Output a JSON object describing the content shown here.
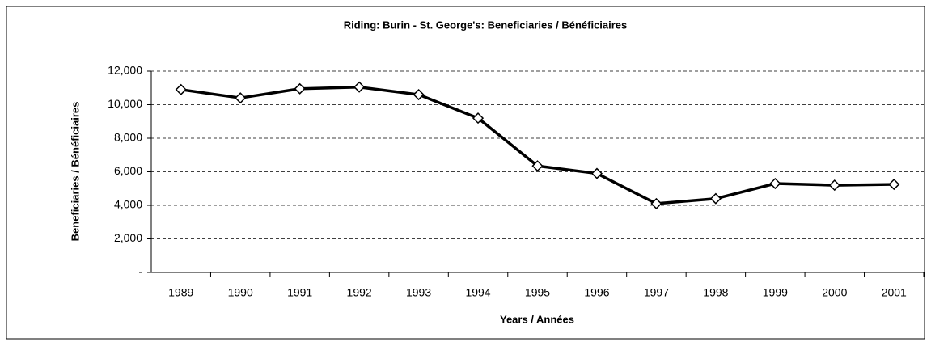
{
  "chart_data": {
    "type": "line",
    "title": "Riding:  Burin - St. George's:  Beneficiaries / Bénéficiaires",
    "x_label": "Years / Années",
    "y_label": "Beneficiaries / Bénéficiaires",
    "categories": [
      "1989",
      "1990",
      "1991",
      "1992",
      "1993",
      "1994",
      "1995",
      "1996",
      "1997",
      "1998",
      "1999",
      "2000",
      "2001"
    ],
    "series": [
      {
        "name": "Beneficiaries",
        "color": "#000000",
        "values": [
          10900,
          10400,
          10950,
          11050,
          10600,
          9200,
          6350,
          5900,
          4100,
          4400,
          5300,
          5200,
          5250
        ]
      }
    ],
    "ylim": [
      0,
      12000
    ],
    "yticks": [
      {
        "value": 0,
        "label": "-"
      },
      {
        "value": 2000,
        "label": "2,000"
      },
      {
        "value": 4000,
        "label": "4,000"
      },
      {
        "value": 6000,
        "label": "6,000"
      },
      {
        "value": 8000,
        "label": "8,000"
      },
      {
        "value": 10000,
        "label": "10,000"
      },
      {
        "value": 12000,
        "label": "12,000"
      }
    ],
    "grid": true
  }
}
